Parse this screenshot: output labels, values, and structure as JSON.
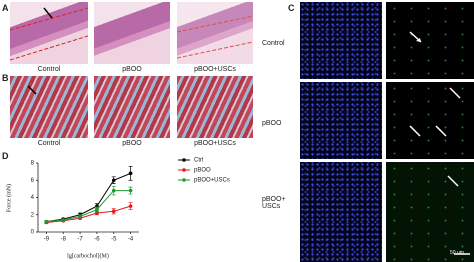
{
  "panels": {
    "A": {
      "label": "A",
      "captions": [
        "Control",
        "pBOO",
        "pBOO+USCs"
      ]
    },
    "B": {
      "label": "B",
      "captions": [
        "Control",
        "pBOO",
        "pBOO+USCs"
      ]
    },
    "C": {
      "label": "C",
      "row_labels": [
        "Control",
        "pBOO",
        "pBOO+ USCs"
      ],
      "scale_bar": "50 um"
    },
    "D": {
      "label": "D"
    }
  },
  "chart_data": {
    "type": "line",
    "xlabel": "lg[carbochol](M)",
    "ylabel": "Force (mN)",
    "x": [
      -9,
      -8,
      -7,
      -6,
      -5,
      -4
    ],
    "xlim": [
      -9.5,
      -3.5
    ],
    "xticks": [
      -9,
      -8,
      -7,
      -6,
      -5,
      -4
    ],
    "ylim": [
      0,
      8
    ],
    "yticks": [
      0,
      2,
      4,
      6,
      8
    ],
    "legend": "upper right-outside",
    "series": [
      {
        "name": "Ctrl",
        "color": "#000000",
        "values": [
          1.2,
          1.5,
          2.0,
          3.0,
          6.0,
          6.8
        ],
        "errors": [
          0.1,
          0.1,
          0.2,
          0.3,
          0.4,
          0.8
        ]
      },
      {
        "name": "pBOO",
        "color": "#e8141e",
        "values": [
          1.1,
          1.3,
          1.6,
          2.2,
          2.4,
          3.0
        ],
        "errors": [
          0.1,
          0.1,
          0.1,
          0.2,
          0.3,
          0.4
        ]
      },
      {
        "name": "pBOO+USCs",
        "color": "#1f9a2e",
        "values": [
          1.2,
          1.4,
          1.8,
          2.6,
          4.8,
          4.8
        ],
        "errors": [
          0.1,
          0.1,
          0.2,
          0.3,
          0.5,
          0.4
        ]
      }
    ]
  }
}
